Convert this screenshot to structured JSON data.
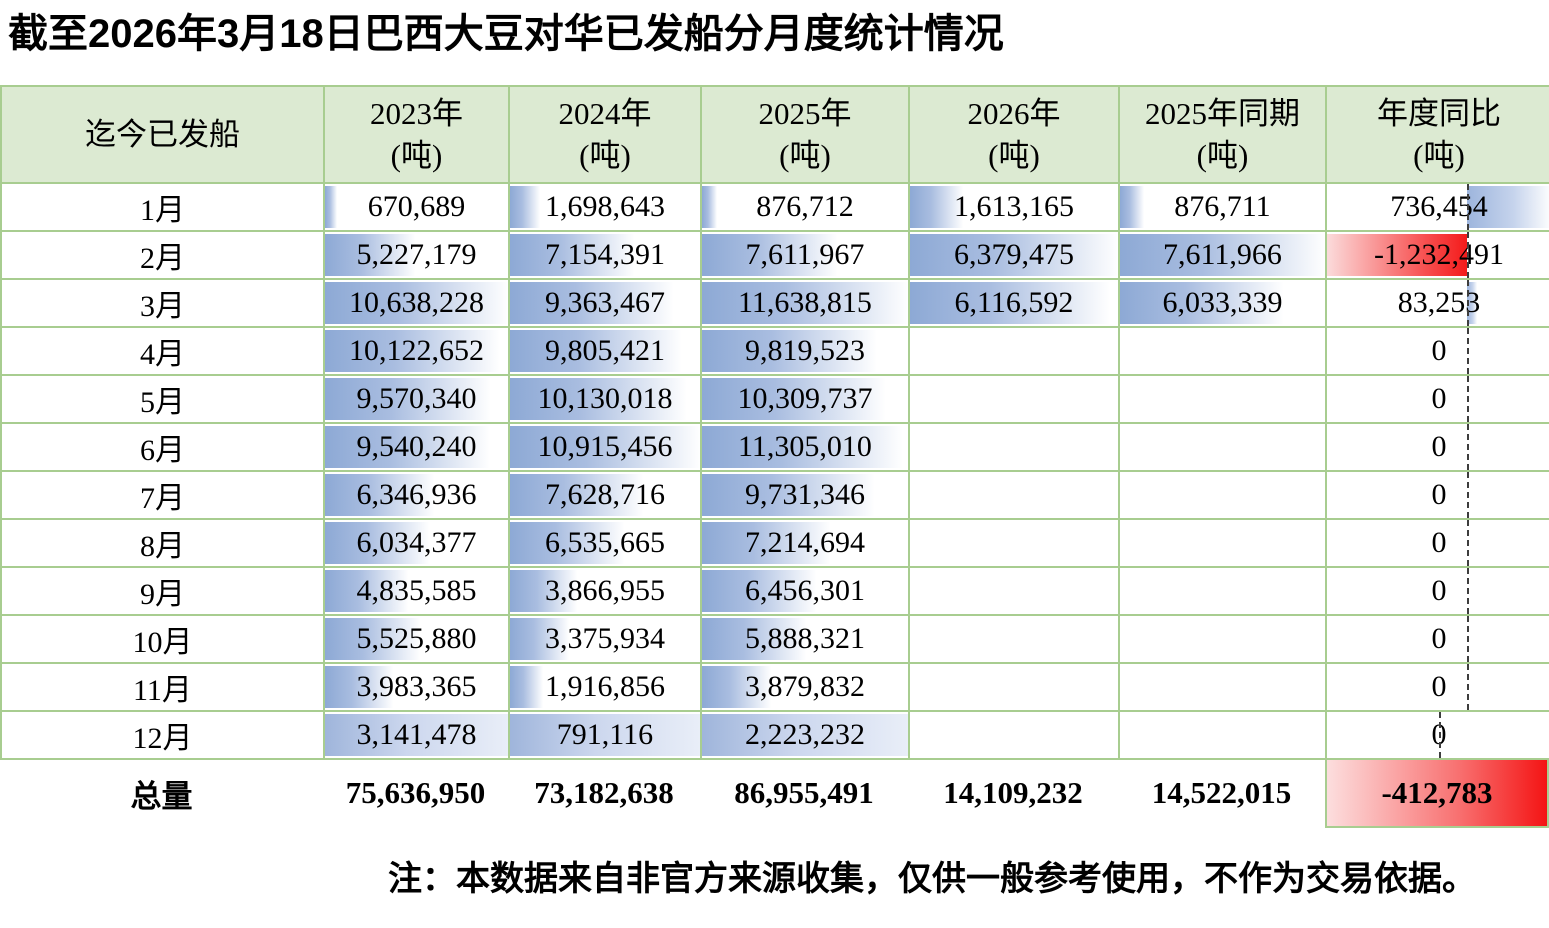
{
  "title": "截至2026年3月18日巴西大豆对华已发船分月度统计情况",
  "note": "注：本数据来自非官方来源收集，仅供一般参考使用，不作为交易依据。",
  "colors": {
    "header_bg": "#dcead2",
    "grid_green": "#a8cd90",
    "databar_blue": "#8da9d5",
    "databar_negative_red": "#f41b1b",
    "total_negative_fill": "#f41414"
  },
  "chart_data": {
    "type": "table",
    "title": "截至2026年3月18日巴西大豆对华已发船分月度统计情况",
    "unit": "吨",
    "header": {
      "label": "迄今已发船",
      "cols": [
        {
          "year": "2023年",
          "unit": "(吨)"
        },
        {
          "year": "2024年",
          "unit": "(吨)"
        },
        {
          "year": "2025年",
          "unit": "(吨)"
        },
        {
          "year": "2026年",
          "unit": "(吨)"
        },
        {
          "year": "2025年同期",
          "unit": "(吨)"
        },
        {
          "year": "年度同比",
          "unit": "(吨)"
        }
      ]
    },
    "rows": [
      {
        "month": "1月",
        "v2023": "670,689",
        "v2024": "1,698,643",
        "v2025": "876,712",
        "v2026": "1,613,165",
        "v2025ytd": "876,711",
        "yoy": "736,454"
      },
      {
        "month": "2月",
        "v2023": "5,227,179",
        "v2024": "7,154,391",
        "v2025": "7,611,967",
        "v2026": "6,379,475",
        "v2025ytd": "7,611,966",
        "yoy": "-1,232,491"
      },
      {
        "month": "3月",
        "v2023": "10,638,228",
        "v2024": "9,363,467",
        "v2025": "11,638,815",
        "v2026": "6,116,592",
        "v2025ytd": "6,033,339",
        "yoy": "83,253"
      },
      {
        "month": "4月",
        "v2023": "10,122,652",
        "v2024": "9,805,421",
        "v2025": "9,819,523",
        "v2026": "",
        "v2025ytd": "",
        "yoy": "0"
      },
      {
        "month": "5月",
        "v2023": "9,570,340",
        "v2024": "10,130,018",
        "v2025": "10,309,737",
        "v2026": "",
        "v2025ytd": "",
        "yoy": "0"
      },
      {
        "month": "6月",
        "v2023": "9,540,240",
        "v2024": "10,915,456",
        "v2025": "11,305,010",
        "v2026": "",
        "v2025ytd": "",
        "yoy": "0"
      },
      {
        "month": "7月",
        "v2023": "6,346,936",
        "v2024": "7,628,716",
        "v2025": "9,731,346",
        "v2026": "",
        "v2025ytd": "",
        "yoy": "0"
      },
      {
        "month": "8月",
        "v2023": "6,034,377",
        "v2024": "6,535,665",
        "v2025": "7,214,694",
        "v2026": "",
        "v2025ytd": "",
        "yoy": "0"
      },
      {
        "month": "9月",
        "v2023": "4,835,585",
        "v2024": "3,866,955",
        "v2025": "6,456,301",
        "v2026": "",
        "v2025ytd": "",
        "yoy": "0"
      },
      {
        "month": "10月",
        "v2023": "5,525,880",
        "v2024": "3,375,934",
        "v2025": "5,888,321",
        "v2026": "",
        "v2025ytd": "",
        "yoy": "0"
      },
      {
        "month": "11月",
        "v2023": "3,983,365",
        "v2024": "1,916,856",
        "v2025": "3,879,832",
        "v2026": "",
        "v2025ytd": "",
        "yoy": "0"
      },
      {
        "month": "12月",
        "v2023": "3,141,478",
        "v2024": "791,116",
        "v2025": "2,223,232",
        "v2026": "",
        "v2025ytd": "",
        "yoy": "0",
        "full_bars": true
      }
    ],
    "total": {
      "label": "总量",
      "v2023": "75,636,950",
      "v2024": "73,182,638",
      "v2025": "86,955,491",
      "v2026": "14,109,232",
      "v2025ytd": "14,522,015",
      "yoy": "-412,783"
    }
  }
}
